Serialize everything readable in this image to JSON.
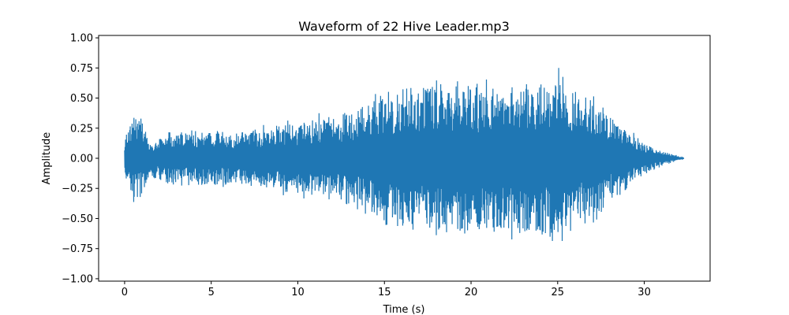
{
  "chart_data": {
    "type": "line",
    "title": "Waveform of 22 Hive Leader.mp3",
    "xlabel": "Time (s)",
    "ylabel": "Amplitude",
    "xlim": [
      -1.5,
      33.8
    ],
    "ylim": [
      -1.02,
      1.02
    ],
    "x_ticks": [
      0,
      5,
      10,
      15,
      20,
      25,
      30
    ],
    "x_tick_labels": [
      "0",
      "5",
      "10",
      "15",
      "20",
      "25",
      "30"
    ],
    "y_ticks": [
      1.0,
      0.75,
      0.5,
      0.25,
      0.0,
      -0.25,
      -0.5,
      -0.75,
      -1.0
    ],
    "y_tick_labels": [
      "1.00",
      "0.75",
      "0.50",
      "0.25",
      "0.00",
      "−0.25",
      "−0.50",
      "−0.75",
      "−1.00"
    ],
    "grid": false,
    "legend": "none",
    "color": "#1f77b4",
    "series": [
      {
        "x": [
          0,
          0.5,
          1,
          1.5,
          2,
          3,
          4,
          5,
          6,
          7,
          8,
          9,
          10,
          11,
          12,
          13,
          14,
          15,
          16,
          17,
          18,
          19,
          20,
          21,
          22,
          23,
          24,
          25,
          26,
          27,
          28,
          29,
          30,
          30.5,
          31,
          31.5,
          32,
          32.3
        ],
        "y": [
          0.21,
          0.39,
          0.34,
          0.17,
          0.22,
          0.24,
          0.24,
          0.26,
          0.24,
          0.26,
          0.29,
          0.31,
          0.34,
          0.37,
          0.4,
          0.45,
          0.5,
          0.61,
          0.66,
          0.65,
          0.73,
          0.69,
          0.66,
          0.72,
          0.69,
          0.76,
          0.71,
          0.79,
          0.67,
          0.56,
          0.43,
          0.28,
          0.15,
          0.1,
          0.08,
          0.05,
          0.02,
          0.0
        ]
      }
    ]
  }
}
